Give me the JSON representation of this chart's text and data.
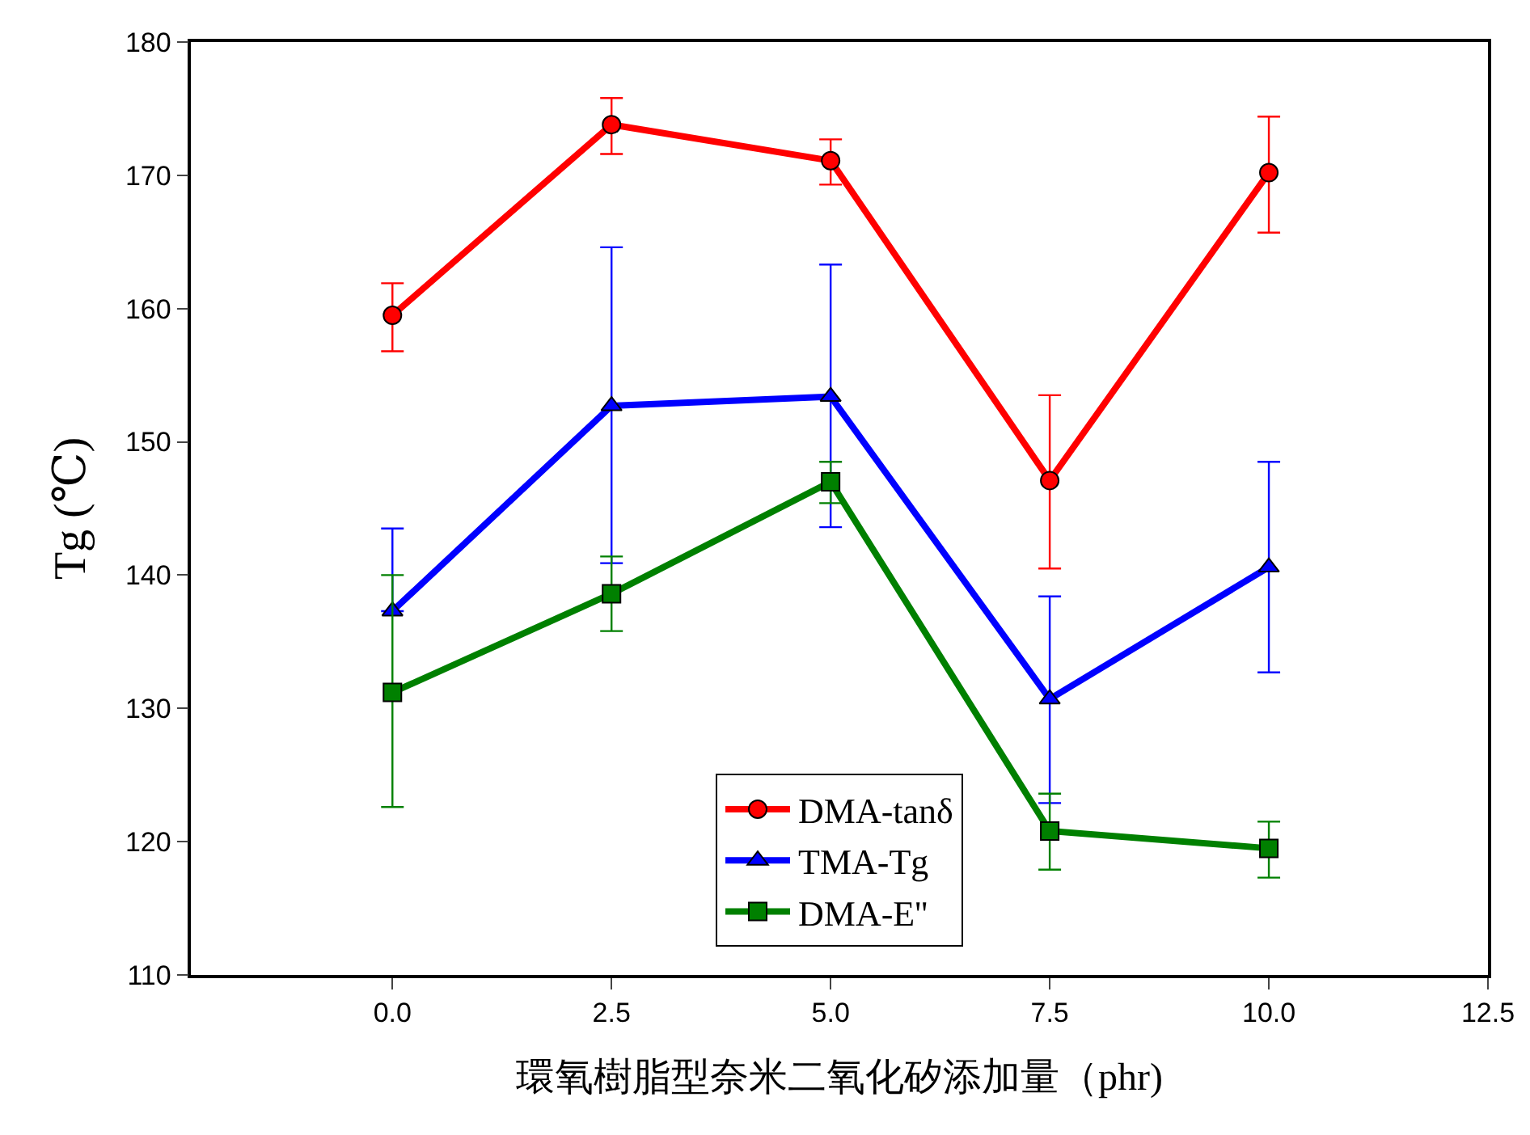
{
  "chart_data": {
    "type": "line",
    "xlabel": "環氧樹脂型奈米二氧化矽添加量（phr)",
    "ylabel": "Tg (℃)",
    "x": [
      0,
      2.5,
      5,
      7.5,
      10
    ],
    "series": [
      {
        "name": "DMA-tanδ",
        "color": "#ff0000",
        "marker": "circle",
        "values": [
          159.5,
          173.8,
          171.1,
          147.1,
          170.2
        ],
        "errors": [
          [
            156.8,
            161.9
          ],
          [
            171.6,
            175.8
          ],
          [
            169.3,
            172.7
          ],
          [
            140.5,
            153.5
          ],
          [
            165.7,
            174.4
          ]
        ]
      },
      {
        "name": "TMA-Tg",
        "color": "#0000ff",
        "marker": "triangle",
        "values": [
          137.3,
          152.7,
          153.4,
          130.7,
          140.6
        ],
        "errors": [
          [
            137.3,
            143.5
          ],
          [
            140.9,
            164.6
          ],
          [
            143.6,
            163.3
          ],
          [
            122.9,
            138.4
          ],
          [
            132.7,
            148.5
          ]
        ]
      },
      {
        "name": "DMA-E''",
        "color": "#008000",
        "marker": "square",
        "values": [
          131.2,
          138.6,
          147.0,
          120.8,
          119.5
        ],
        "errors": [
          [
            122.6,
            140.0
          ],
          [
            135.8,
            141.4
          ],
          [
            145.4,
            148.5
          ],
          [
            117.9,
            123.6
          ],
          [
            117.3,
            121.5
          ]
        ]
      }
    ],
    "xlim": [
      -2.3,
      12.5
    ],
    "xticks": [
      {
        "value": 0,
        "label": "0.0"
      },
      {
        "value": 2.5,
        "label": "2.5"
      },
      {
        "value": 5,
        "label": "5.0"
      },
      {
        "value": 7.5,
        "label": "7.5"
      },
      {
        "value": 10,
        "label": "10.0"
      },
      {
        "value": 12.5,
        "label": "12.5"
      }
    ],
    "ylim": [
      110,
      180
    ],
    "yticks": [
      110,
      120,
      130,
      140,
      150,
      160,
      170,
      180
    ],
    "grid": false,
    "legend": "bottom",
    "line_style": "solid"
  }
}
